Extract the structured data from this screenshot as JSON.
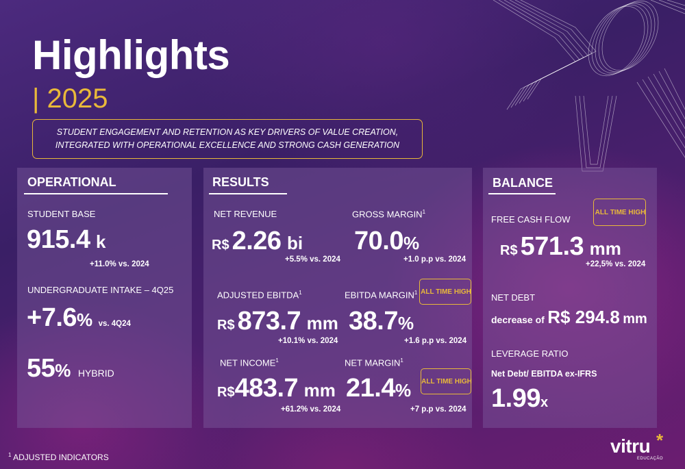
{
  "header": {
    "title": "Highlights",
    "year": "| 2025",
    "tagline_line1": "STUDENT ENGAGEMENT AND RETENTION AS KEY DRIVERS OF VALUE CREATION,",
    "tagline_line2": "INTEGRATED WITH OPERATIONAL EXCELLENCE AND STRONG CASH GENERATION"
  },
  "operational": {
    "heading": "OPERATIONAL",
    "student_base_label": "STUDENT BASE",
    "student_base_value": "915.4",
    "student_base_unit": "k",
    "student_base_change": "+11.0% vs. 2024",
    "intake_label": "UNDERGRADUATE INTAKE – 4Q25",
    "intake_value": "+7.6",
    "intake_unit": "%",
    "intake_compare": "vs. 4Q24",
    "hybrid_value": "55",
    "hybrid_unit": "%",
    "hybrid_label": "HYBRID"
  },
  "results": {
    "heading": "RESULTS",
    "net_revenue_label": "NET REVENUE",
    "net_revenue_currency": "R$",
    "net_revenue_value": "2.26",
    "net_revenue_unit": "bi",
    "net_revenue_change": "+5.5% vs. 2024",
    "gross_margin_label": "GROSS MARGIN",
    "gross_margin_value": "70.0",
    "gross_margin_unit": "%",
    "gross_margin_change": "+1.0 p.p vs. 2024",
    "adj_ebitda_label": "ADJUSTED EBITDA",
    "adj_ebitda_currency": "R$",
    "adj_ebitda_value": "873.7",
    "adj_ebitda_unit": "mm",
    "adj_ebitda_change": "+10.1% vs. 2024",
    "ebitda_margin_label": "EBITDA MARGIN",
    "ebitda_margin_value": "38.7",
    "ebitda_margin_unit": "%",
    "ebitda_margin_change": "+1.6 p.p vs. 2024",
    "net_income_label": "NET INCOME",
    "net_income_currency": "R$",
    "net_income_value": "483.7",
    "net_income_unit": "mm",
    "net_income_change": "+61.2% vs. 2024",
    "net_margin_label": "NET MARGIN",
    "net_margin_value": "21.4",
    "net_margin_unit": "%",
    "net_margin_change": "+7 p.p vs. 2024"
  },
  "balance": {
    "heading": "BALANCE",
    "fcf_label": "FREE CASH FLOW",
    "fcf_currency": "R$",
    "fcf_value": "571.3",
    "fcf_unit": "mm",
    "fcf_change": "+22,5% vs. 2024",
    "net_debt_label": "NET DEBT",
    "net_debt_prefix": "decrease of",
    "net_debt_value": "R$ 294.8",
    "net_debt_unit": "mm",
    "leverage_label": "LEVERAGE RATIO",
    "leverage_sub": "Net Debt/ EBITDA ex-IFRS",
    "leverage_value": "1.99",
    "leverage_unit": "x"
  },
  "badges": {
    "all_time_high": "ALL TIME HIGH"
  },
  "footnote": {
    "marker": "1",
    "text": "ADJUSTED INDICATORS",
    "superscript": "1"
  },
  "logo": {
    "name": "vitru",
    "subtitle": "EDUCAÇÃO",
    "asterisk": "*"
  },
  "colors": {
    "accent": "#e9b93a",
    "panel": "#7c5c9e"
  },
  "icons": [
    "star-icon",
    "logo-asterisk-icon"
  ]
}
